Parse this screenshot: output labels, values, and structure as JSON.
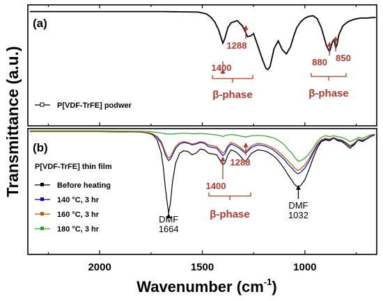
{
  "chart_data": {
    "type": "line",
    "xlabel": "Wavenumber (cm",
    "xlabel_sup": "-1",
    "xlabel_close": ")",
    "ylabel": "Transmittance (a.u.)",
    "xlim": [
      2350,
      650
    ],
    "x_reversed": true,
    "x_ticks": [
      2000,
      1500,
      1000
    ],
    "panels": [
      {
        "label": "(a)",
        "legend": [
          {
            "name": "P[VDF-TrFE] podwer",
            "color": "#000000",
            "marker": "open-square"
          }
        ],
        "series": [
          {
            "name": "P[VDF-TrFE] podwer",
            "color": "#000000",
            "x": [
              2340,
              2100,
              1900,
              1800,
              1700,
              1600,
              1520,
              1480,
              1460,
              1440,
              1420,
              1410,
              1400,
              1390,
              1375,
              1360,
              1330,
              1305,
              1290,
              1280,
              1265,
              1250,
              1235,
              1220,
              1205,
              1190,
              1180,
              1170,
              1160,
              1150,
              1130,
              1110,
              1090,
              1070,
              1055,
              1040,
              1020,
              1000,
              980,
              960,
              940,
              920,
              905,
              895,
              885,
              880,
              875,
              865,
              858,
              850,
              843,
              835,
              815,
              790,
              760,
              730,
              700,
              670,
              655
            ],
            "y": [
              97,
              97,
              97,
              97,
              97,
              96.5,
              96,
              93,
              88,
              80,
              66,
              55,
              44,
              52,
              70,
              78,
              82,
              73,
              63,
              55,
              56,
              60,
              45,
              30,
              15,
              2,
              0,
              5,
              20,
              35,
              48,
              33,
              26,
              38,
              55,
              70,
              80,
              86,
              89,
              90,
              85,
              70,
              52,
              40,
              33,
              30,
              35,
              47,
              50,
              36,
              42,
              58,
              73,
              80,
              84,
              86,
              86,
              87,
              87
            ]
          }
        ],
        "annotations": [
          {
            "text": "1400",
            "x": 1400,
            "arrow_to": 1400,
            "color": "#b03a2e"
          },
          {
            "text": "1288",
            "x": 1288,
            "arrow_to": 1288,
            "color": "#b03a2e"
          },
          {
            "text": "880",
            "x": 880,
            "arrow_to": 880,
            "color": "#b03a2e"
          },
          {
            "text": "850",
            "x": 850,
            "arrow_to": 850,
            "color": "#b03a2e"
          }
        ],
        "brackets": [
          {
            "text": "β-phase",
            "x_from": 1400,
            "x_to": 1288,
            "color": "#b03a2e"
          },
          {
            "text": "β-phase",
            "x_from": 880,
            "x_to": 850,
            "color": "#b03a2e"
          }
        ]
      },
      {
        "label": "(b)",
        "legend_title": "P[VDF-TrFE] thin film",
        "legend": [
          {
            "name": "Before heating",
            "color": "#000000",
            "marker": "filled-square"
          },
          {
            "name": "140 °C, 3 hr",
            "color": "#0000cc",
            "marker": "filled-square"
          },
          {
            "name": "160 °C, 3 hr",
            "color": "#b35900",
            "marker": "filled-square"
          },
          {
            "name": "180 °C, 3 hr",
            "color": "#2e9e2e",
            "marker": "filled-square"
          }
        ],
        "x": [
          2340,
          2200,
          2000,
          1800,
          1760,
          1740,
          1720,
          1700,
          1690,
          1680,
          1670,
          1664,
          1655,
          1645,
          1630,
          1610,
          1590,
          1570,
          1550,
          1530,
          1510,
          1490,
          1470,
          1450,
          1430,
          1410,
          1400,
          1390,
          1375,
          1360,
          1340,
          1320,
          1300,
          1290,
          1280,
          1260,
          1230,
          1200,
          1180,
          1160,
          1140,
          1120,
          1100,
          1080,
          1060,
          1050,
          1040,
          1032,
          1020,
          1000,
          980,
          960,
          940,
          920,
          900,
          880,
          860,
          840,
          820,
          800,
          780,
          760,
          740,
          720,
          700,
          680,
          660
        ],
        "series": [
          {
            "name": "Before heating",
            "color": "#000000",
            "y": [
              98,
              98,
              98,
              97.5,
              96,
              94,
              88,
              72,
              55,
              30,
              10,
              0,
              12,
              38,
              60,
              72,
              75,
              74,
              70,
              72,
              77,
              76,
              72,
              71,
              70,
              62,
              58,
              60,
              70,
              76,
              74,
              70,
              64,
              62,
              65,
              72,
              76,
              75,
              73,
              70,
              66,
              60,
              53,
              45,
              38,
              34,
              32,
              31,
              33,
              40,
              52,
              66,
              78,
              86,
              88,
              87,
              90,
              87,
              86,
              82,
              78,
              82,
              88,
              86,
              89,
              92,
              94
            ]
          },
          {
            "name": "140 °C, 3 hr",
            "color": "#0000cc",
            "y": [
              98,
              98,
              98,
              97.5,
              96.5,
              95,
              91,
              84,
              78,
              70,
              65,
              63,
              65,
              70,
              78,
              83,
              85,
              84,
              82,
              83,
              85,
              84,
              80,
              79,
              78,
              72,
              69,
              71,
              79,
              83,
              81,
              78,
              74,
              72,
              74,
              79,
              82,
              81,
              79,
              77,
              73,
              69,
              64,
              58,
              53,
              50,
              48,
              47,
              49,
              54,
              62,
              72,
              81,
              87,
              89,
              88,
              90,
              88,
              87,
              84,
              80,
              83,
              88,
              87,
              89,
              92,
              94
            ]
          },
          {
            "name": "160 °C, 3 hr",
            "color": "#b35900",
            "y": [
              98,
              98,
              98,
              97.5,
              96.5,
              95,
              92,
              86,
              80,
              73,
              68,
              66,
              68,
              73,
              80,
              85,
              86,
              85,
              83,
              84,
              86,
              85,
              82,
              81,
              80,
              75,
              72,
              74,
              81,
              85,
              83,
              80,
              76,
              74,
              76,
              81,
              84,
              83,
              81,
              79,
              76,
              72,
              67,
              62,
              57,
              54,
              52,
              51,
              53,
              58,
              65,
              74,
              83,
              88,
              90,
              89,
              91,
              89,
              88,
              85,
              81,
              84,
              89,
              88,
              90,
              93,
              95
            ]
          },
          {
            "name": "180 °C, 3 hr",
            "color": "#2e9e2e",
            "y": [
              99,
              99,
              99,
              98.5,
              98,
              97.5,
              97,
              96.5,
              96,
              95.5,
              95,
              95,
              95,
              95,
              95.5,
              96,
              96,
              96,
              95.5,
              95.5,
              96,
              95.5,
              95,
              94.5,
              94,
              93,
              92,
              93,
              94,
              94.5,
              94,
              93,
              92,
              91.5,
              92,
              93,
              93.5,
              93,
              92,
              91,
              89,
              86,
              82,
              76,
              71,
              67,
              64,
              62,
              63,
              66,
              71,
              78,
              86,
              91,
              93,
              92,
              93,
              92,
              91,
              89,
              86,
              88,
              91,
              90,
              92,
              94,
              95
            ]
          }
        ],
        "annotations": [
          {
            "text": "1400",
            "x": 1400,
            "arrow_to": 1400,
            "color": "#b03a2e"
          },
          {
            "text": "1288",
            "x": 1288,
            "arrow_to": 1288,
            "color": "#b03a2e"
          },
          {
            "text": "DMF",
            "text2": "1664",
            "x": 1664,
            "arrow_to": 1664,
            "color": "#000000"
          },
          {
            "text": "DMF",
            "text2": "1032",
            "x": 1032,
            "arrow_to": 1032,
            "color": "#000000"
          }
        ],
        "brackets": [
          {
            "text": "β-phase",
            "x_from": 1400,
            "x_to": 1288,
            "color": "#b03a2e"
          }
        ]
      }
    ]
  }
}
